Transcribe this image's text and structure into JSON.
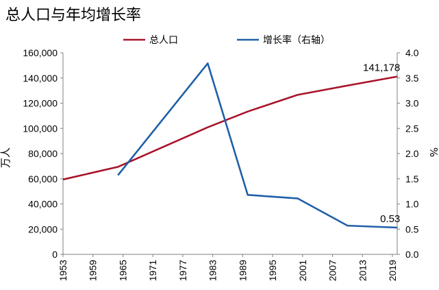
{
  "chart_data": {
    "type": "line",
    "title": "总人口与年均增长率",
    "x_categories": [
      "1953",
      "1959",
      "1965",
      "1971",
      "1977",
      "1983",
      "1989",
      "1995",
      "2001",
      "2007",
      "2013",
      "2019"
    ],
    "y_left": {
      "label": "万人",
      "range": [
        0,
        160000
      ],
      "ticks": [
        "0",
        "20,000",
        "40,000",
        "60,000",
        "80,000",
        "100,000",
        "120,000",
        "140,000",
        "160,000"
      ]
    },
    "y_right": {
      "label": "%",
      "range": [
        0,
        4.0
      ],
      "ticks": [
        "0.0",
        "0.5",
        "1.0",
        "1.5",
        "2.0",
        "2.5",
        "3.0",
        "3.5",
        "4.0"
      ]
    },
    "series": [
      {
        "name": "总人口",
        "axis": "left",
        "color": "#A8142A",
        "points": [
          [
            1953,
            59435
          ],
          [
            1964,
            69458
          ],
          [
            1982,
            100818
          ],
          [
            1990,
            113368
          ],
          [
            2000,
            126583
          ],
          [
            2010,
            133972
          ],
          [
            2020,
            141178
          ]
        ]
      },
      {
        "name": "增长率（右轴）",
        "axis": "right",
        "color": "#1F5FA8",
        "points": [
          [
            1964,
            1.57
          ],
          [
            1982,
            3.79
          ],
          [
            1990,
            1.18
          ],
          [
            2000,
            1.11
          ],
          [
            2010,
            0.57
          ],
          [
            2020,
            0.53
          ]
        ]
      }
    ],
    "annotations": [
      {
        "series": 0,
        "text": "141,178"
      },
      {
        "series": 1,
        "text": "0.53"
      }
    ],
    "legend_position": "top-center"
  }
}
